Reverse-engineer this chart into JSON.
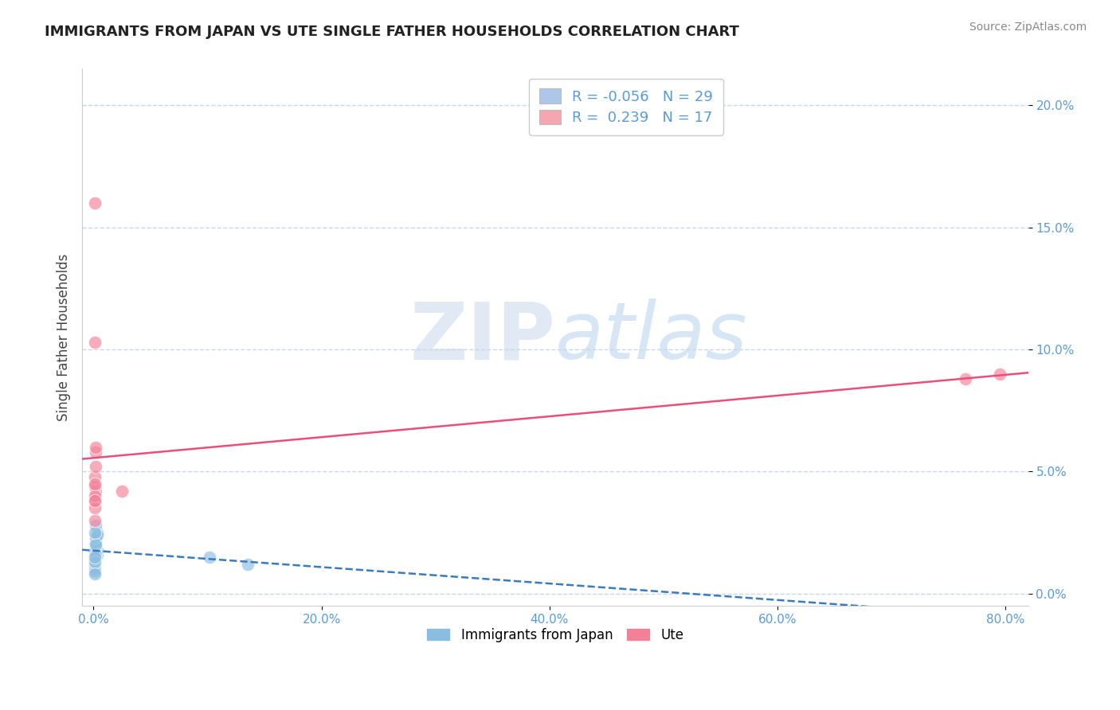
{
  "title": "IMMIGRANTS FROM JAPAN VS UTE SINGLE FATHER HOUSEHOLDS CORRELATION CHART",
  "source": "Source: ZipAtlas.com",
  "xlabel_label": "Immigrants from Japan",
  "ylabel_label": "Single Father Households",
  "background_color": "#ffffff",
  "grid_color": "#c8d8e8",
  "watermark_zip": "ZIP",
  "watermark_atlas": "atlas",
  "legend": {
    "japan": {
      "R": "-0.056",
      "N": "29",
      "color": "#aec6e8"
    },
    "ute": {
      "R": "0.239",
      "N": "17",
      "color": "#f4a7b0"
    }
  },
  "japan_scatter_x": [
    0.001,
    0.002,
    0.001,
    0.003,
    0.002,
    0.001,
    0.002,
    0.003,
    0.002,
    0.001,
    0.003,
    0.002,
    0.001,
    0.002,
    0.001,
    0.001,
    0.002,
    0.001,
    0.002,
    0.003,
    0.001,
    0.002,
    0.001,
    0.002,
    0.001,
    0.001,
    0.102,
    0.135,
    0.001
  ],
  "japan_scatter_y": [
    0.02,
    0.022,
    0.018,
    0.025,
    0.015,
    0.012,
    0.028,
    0.016,
    0.02,
    0.013,
    0.018,
    0.019,
    0.014,
    0.022,
    0.011,
    0.017,
    0.021,
    0.01,
    0.023,
    0.024,
    0.009,
    0.016,
    0.013,
    0.02,
    0.008,
    0.015,
    0.015,
    0.012,
    0.025
  ],
  "ute_scatter_x": [
    0.001,
    0.002,
    0.001,
    0.002,
    0.001,
    0.001,
    0.002,
    0.001,
    0.001,
    0.002,
    0.001,
    0.025,
    0.001,
    0.001,
    0.765,
    0.795,
    0.001
  ],
  "ute_scatter_y": [
    0.038,
    0.042,
    0.048,
    0.052,
    0.035,
    0.044,
    0.058,
    0.04,
    0.045,
    0.06,
    0.038,
    0.042,
    0.103,
    0.16,
    0.088,
    0.09,
    0.03
  ],
  "xlim": [
    -0.01,
    0.82
  ],
  "ylim": [
    -0.005,
    0.215
  ],
  "xticks": [
    0.0,
    0.2,
    0.4,
    0.6,
    0.8
  ],
  "yticks": [
    0.0,
    0.05,
    0.1,
    0.15,
    0.2
  ],
  "title_color": "#222222",
  "axis_color": "#5b9bd5",
  "japan_color": "#8bbde0",
  "ute_color": "#f48098",
  "japan_line_color": "#3a7abf",
  "ute_line_color": "#e8507a"
}
